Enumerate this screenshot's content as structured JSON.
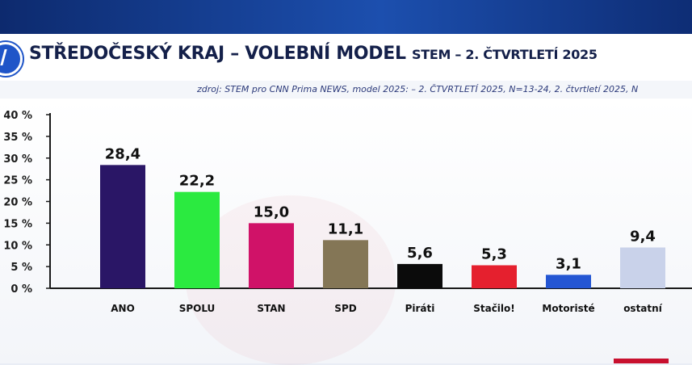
{
  "header": {
    "title_main": "STŘEDOČESKÝ KRAJ – VOLEBNÍ MODEL",
    "title_sub": "STEM – 2. ČTVRTLETÍ 2025",
    "source": "zdroj: STEM pro CNN Prima NEWS, model 2025: – 2. ČTVRTLETÍ 2025, N=13-24, 2. čtvrtletí 2025, N"
  },
  "colors": {
    "title": "#14204a",
    "accent": "#1f55c8"
  },
  "chart_data": {
    "type": "bar",
    "categories": [
      "ANO",
      "SPOLU",
      "STAN",
      "SPD",
      "Piráti",
      "Stačilo!",
      "Motoristé",
      "ostatní"
    ],
    "values": [
      28.4,
      22.2,
      15.0,
      11.1,
      5.6,
      5.3,
      3.1,
      9.4
    ],
    "value_labels": [
      "28,4",
      "22,2",
      "15,0",
      "11,1",
      "5,6",
      "5,3",
      "3,1",
      "9,4"
    ],
    "colors": [
      "#2a1666",
      "#2bea40",
      "#d01268",
      "#847656",
      "#0b0b0b",
      "#e5202e",
      "#2456d3",
      "#c9d2ea"
    ],
    "ylim": [
      0,
      40
    ],
    "yticks": [
      "0 %",
      "5 %",
      "10 %",
      "15 %",
      "20 %",
      "25 %",
      "30 %",
      "35 %",
      "40 %"
    ],
    "grid": false
  }
}
